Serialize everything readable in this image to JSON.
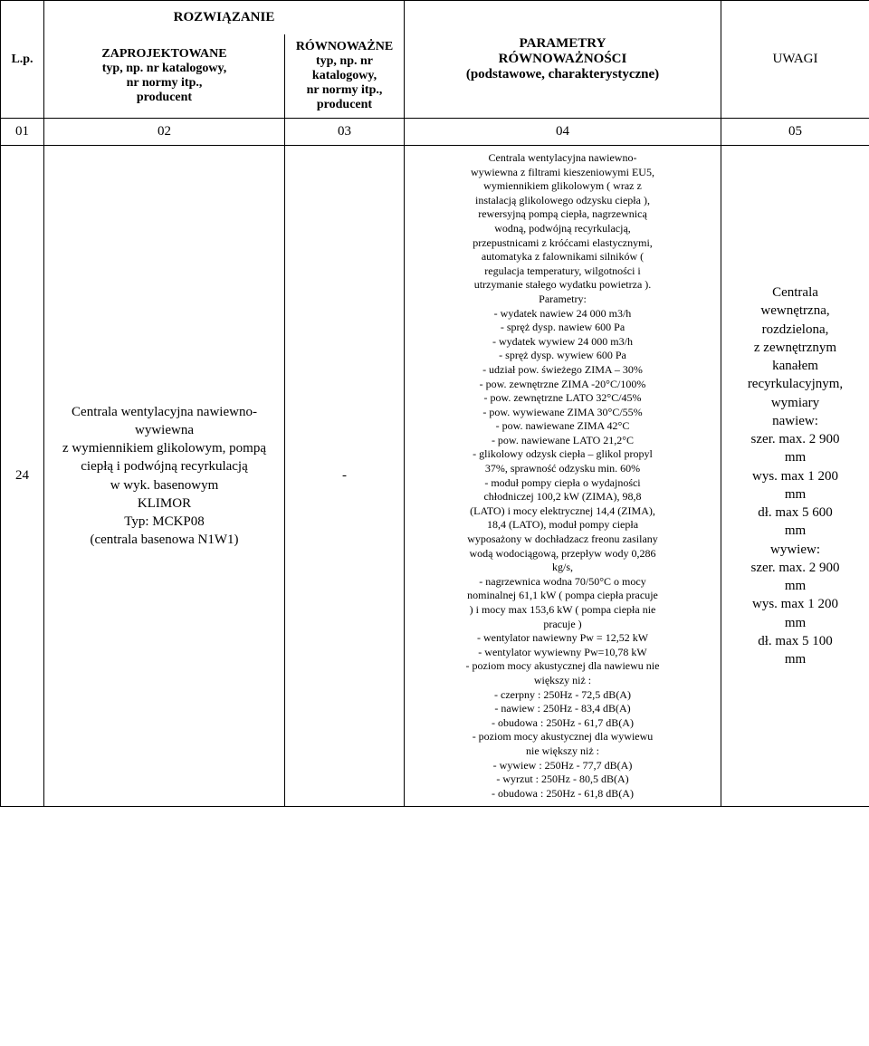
{
  "header": {
    "lp": "L.p.",
    "rozw": "ROZWIĄZANIE",
    "zaproj": "ZAPROJEKTOWANE\ntyp, np. nr katalogowy,\nnr normy itp.,\nproducent",
    "rown": "RÓWNOWAŻNE\ntyp, np. nr\nkatalogowy,\nnr normy itp.,\nproducent",
    "param": "PARAMETRY\nRÓWNOWAŻNOŚCI\n(podstawowe, charakterystyczne)",
    "uwagi": "UWAGI"
  },
  "numrow": {
    "c1": "01",
    "c2": "02",
    "c3": "03",
    "c4": "04",
    "c5": "05"
  },
  "row": {
    "lp": "24",
    "zaproj": "Centrala wentylacyjna nawiewno-\nwywiewna\nz wymiennikiem glikolowym, pompą\nciepłą i podwójną recyrkulacją\nw wyk. basenowym\nKLIMOR\nTyp: MCKP08\n(centrala basenowa N1W1)",
    "rown": "-",
    "param": "Centrala wentylacyjna nawiewno-\nwywiewna z  filtrami kieszeniowymi EU5,\nwymiennikiem glikolowym ( wraz z\ninstalacją glikolowego odzysku ciepła ),\nrewersyjną pompą ciepła, nagrzewnicą\nwodną, podwójną recyrkulacją,\nprzepustnicami z króćcami elastycznymi,\nautomatyka z falownikami silników (\nregulacja temperatury, wilgotności i\nutrzymanie stałego wydatku powietrza ).\nParametry:\n- wydatek nawiew 24 000 m3/h\n- spręż dysp. nawiew 600 Pa\n- wydatek wywiew 24 000 m3/h\n- spręż dysp. wywiew 600 Pa\n- udział pow. świeżego ZIMA – 30%\n- pow. zewnętrzne ZIMA -20°C/100%\n- pow. zewnętrzne LATO 32°C/45%\n- pow. wywiewane ZIMA 30°C/55%\n- pow. nawiewane ZIMA 42°C\n- pow. nawiewane LATO 21,2°C\n- glikolowy odzysk ciepła – glikol propyl\n37%, sprawność odzysku min. 60%\n- moduł pompy ciepła o wydajności\nchłodniczej 100,2 kW (ZIMA), 98,8\n(LATO)  i mocy elektrycznej 14,4 (ZIMA),\n18,4 (LATO), moduł pompy ciepła\nwyposażony w dochładzacz freonu zasilany\nwodą wodociągową, przepływ wody 0,286\nkg/s,\n- nagrzewnica wodna 70/50°C o mocy\nnominalnej 61,1 kW ( pompa ciepła pracuje\n) i mocy max 153,6 kW ( pompa ciepła nie\npracuje )\n- wentylator nawiewny  Pw = 12,52 kW\n- wentylator wywiewny Pw=10,78 kW\n- poziom mocy akustycznej dla nawiewu nie\nwiększy niż :\n- czerpny  : 250Hz - 72,5 dB(A)\n- nawiew : 250Hz - 83,4 dB(A)\n- obudowa : 250Hz - 61,7 dB(A)\n- poziom mocy akustycznej dla wywiewu\nnie większy niż :\n- wywiew : 250Hz - 77,7 dB(A)\n- wyrzut : 250Hz - 80,5 dB(A)\n- obudowa : 250Hz - 61,8 dB(A)",
    "uwagi": "Centrala\nwewnętrzna,\nrozdzielona,\nz zewnętrznym\nkanałem\nrecyrkulacyjnym,\nwymiary\nnawiew:\nszer. max. 2 900\nmm\nwys. max 1 200\nmm\ndł. max 5 600\nmm\nwywiew:\nszer. max. 2 900\nmm\nwys. max 1 200\nmm\ndł. max 5 100\nmm"
  },
  "col_widths": {
    "lp": 48,
    "zaproj": 266,
    "rown": 132,
    "param": 350,
    "uwagi": 164
  },
  "colors": {
    "border": "#000000",
    "bg": "#ffffff",
    "text": "#000000"
  },
  "fonts": {
    "family": "Times New Roman",
    "header_pt": 14,
    "body_pt": 15,
    "param_pt": 12
  }
}
